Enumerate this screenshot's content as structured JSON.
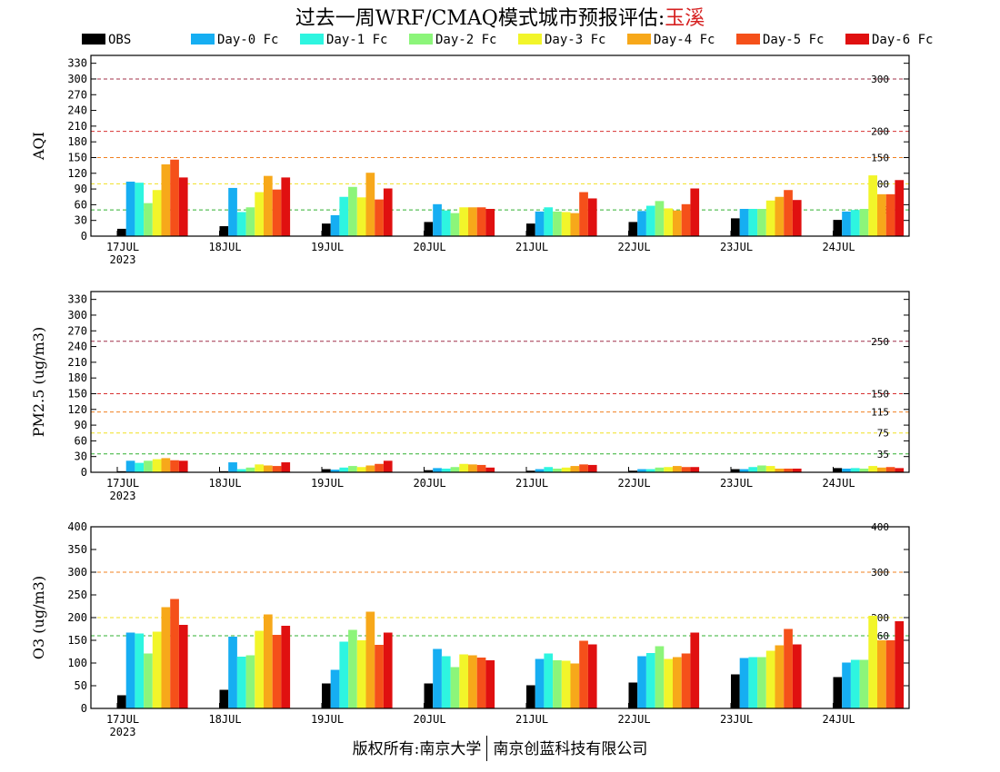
{
  "title": {
    "prefix": "过去一周WRF/CMAQ模式城市预报评估:",
    "city": "玉溪",
    "city_color": "#d62020"
  },
  "footer": {
    "left": "版权所有:南京大学",
    "right": "南京创蓝科技有限公司"
  },
  "legend": [
    {
      "name": "OBS",
      "color": "#000000"
    },
    {
      "name": "Day-0 Fc",
      "color": "#16aef2"
    },
    {
      "name": "Day-1 Fc",
      "color": "#2ef5e0"
    },
    {
      "name": "Day-2 Fc",
      "color": "#8cf57a"
    },
    {
      "name": "Day-3 Fc",
      "color": "#f2f52a"
    },
    {
      "name": "Day-4 Fc",
      "color": "#f7a81a"
    },
    {
      "name": "Day-5 Fc",
      "color": "#f5501a"
    },
    {
      "name": "Day-6 Fc",
      "color": "#e01010"
    }
  ],
  "chart_data": [
    {
      "type": "bar",
      "ylabel": "AQI",
      "ylim": [
        0,
        345
      ],
      "yticks": [
        0,
        30,
        60,
        90,
        120,
        150,
        180,
        210,
        240,
        270,
        300,
        330
      ],
      "categories": [
        "17JUL",
        "18JUL",
        "19JUL",
        "20JUL",
        "21JUL",
        "22JUL",
        "23JUL",
        "24JUL"
      ],
      "year_label": "2023",
      "thresholds": [
        {
          "value": 300,
          "label": "300",
          "color": "#a0304a"
        },
        {
          "value": 200,
          "label": "200",
          "color": "#d83030"
        },
        {
          "value": 150,
          "label": "150",
          "color": "#f08020"
        },
        {
          "value": 100,
          "label": "100",
          "color": "#f0e020"
        },
        {
          "value": 50,
          "label": "50",
          "color": "#30b030"
        }
      ],
      "series": [
        {
          "name": "OBS",
          "values": [
            14,
            19,
            24,
            27,
            24,
            27,
            34,
            31
          ]
        },
        {
          "name": "Day-0 Fc",
          "values": [
            104,
            92,
            40,
            61,
            47,
            48,
            52,
            47
          ]
        },
        {
          "name": "Day-1 Fc",
          "values": [
            102,
            46,
            75,
            49,
            55,
            58,
            52,
            50
          ]
        },
        {
          "name": "Day-2 Fc",
          "values": [
            63,
            55,
            94,
            44,
            47,
            67,
            52,
            52
          ]
        },
        {
          "name": "Day-3 Fc",
          "values": [
            88,
            84,
            74,
            55,
            46,
            53,
            68,
            116
          ]
        },
        {
          "name": "Day-4 Fc",
          "values": [
            137,
            115,
            121,
            55,
            44,
            49,
            75,
            80
          ]
        },
        {
          "name": "Day-5 Fc",
          "values": [
            146,
            89,
            70,
            55,
            84,
            61,
            88,
            80
          ]
        },
        {
          "name": "Day-6 Fc",
          "values": [
            112,
            112,
            91,
            52,
            72,
            91,
            69,
            107
          ]
        }
      ]
    },
    {
      "type": "bar",
      "ylabel": "PM2.5 (ug/m3)",
      "ylim": [
        0,
        345
      ],
      "yticks": [
        0,
        30,
        60,
        90,
        120,
        150,
        180,
        210,
        240,
        270,
        300,
        330
      ],
      "categories": [
        "17JUL",
        "18JUL",
        "19JUL",
        "20JUL",
        "21JUL",
        "22JUL",
        "23JUL",
        "24JUL"
      ],
      "year_label": "2023",
      "thresholds": [
        {
          "value": 250,
          "label": "250",
          "color": "#a0304a"
        },
        {
          "value": 150,
          "label": "150",
          "color": "#d83030"
        },
        {
          "value": 115,
          "label": "115",
          "color": "#f08020"
        },
        {
          "value": 75,
          "label": "75",
          "color": "#f0e020"
        },
        {
          "value": 35,
          "label": "35",
          "color": "#30b030"
        }
      ],
      "series": [
        {
          "name": "OBS",
          "values": [
            2,
            2,
            6,
            4,
            3,
            3,
            6,
            8
          ]
        },
        {
          "name": "Day-0 Fc",
          "values": [
            22,
            19,
            5,
            8,
            6,
            6,
            6,
            7
          ]
        },
        {
          "name": "Day-1 Fc",
          "values": [
            18,
            6,
            9,
            7,
            10,
            6,
            10,
            8
          ]
        },
        {
          "name": "Day-2 Fc",
          "values": [
            22,
            9,
            12,
            10,
            7,
            9,
            13,
            7
          ]
        },
        {
          "name": "Day-3 Fc",
          "values": [
            25,
            15,
            10,
            16,
            9,
            10,
            12,
            12
          ]
        },
        {
          "name": "Day-4 Fc",
          "values": [
            27,
            13,
            13,
            15,
            12,
            12,
            7,
            9
          ]
        },
        {
          "name": "Day-5 Fc",
          "values": [
            23,
            12,
            16,
            14,
            15,
            10,
            7,
            10
          ]
        },
        {
          "name": "Day-6 Fc",
          "values": [
            22,
            19,
            22,
            9,
            14,
            10,
            7,
            8
          ]
        }
      ]
    },
    {
      "type": "bar",
      "ylabel": "O3 (ug/m3)",
      "ylim": [
        0,
        400
      ],
      "yticks": [
        0,
        50,
        100,
        150,
        200,
        250,
        300,
        350,
        400
      ],
      "categories": [
        "17JUL",
        "18JUL",
        "19JUL",
        "20JUL",
        "21JUL",
        "22JUL",
        "23JUL",
        "24JUL"
      ],
      "year_label": "2023",
      "thresholds": [
        {
          "value": 400,
          "label": "400",
          "color": "#a0304a"
        },
        {
          "value": 300,
          "label": "300",
          "color": "#f08020"
        },
        {
          "value": 200,
          "label": "200",
          "color": "#f0e020"
        },
        {
          "value": 160,
          "label": "160",
          "color": "#30b030"
        }
      ],
      "series": [
        {
          "name": "OBS",
          "values": [
            29,
            41,
            55,
            55,
            51,
            57,
            75,
            69
          ]
        },
        {
          "name": "Day-0 Fc",
          "values": [
            167,
            158,
            85,
            131,
            109,
            115,
            111,
            101
          ]
        },
        {
          "name": "Day-1 Fc",
          "values": [
            165,
            114,
            147,
            115,
            121,
            122,
            113,
            107
          ]
        },
        {
          "name": "Day-2 Fc",
          "values": [
            121,
            117,
            173,
            91,
            106,
            137,
            113,
            107
          ]
        },
        {
          "name": "Day-3 Fc",
          "values": [
            169,
            171,
            150,
            119,
            105,
            109,
            127,
            204
          ]
        },
        {
          "name": "Day-4 Fc",
          "values": [
            223,
            207,
            213,
            117,
            99,
            113,
            139,
            150
          ]
        },
        {
          "name": "Day-5 Fc",
          "values": [
            241,
            162,
            140,
            112,
            149,
            121,
            175,
            150
          ]
        },
        {
          "name": "Day-6 Fc",
          "values": [
            184,
            182,
            167,
            106,
            141,
            167,
            141,
            192
          ]
        }
      ]
    }
  ]
}
